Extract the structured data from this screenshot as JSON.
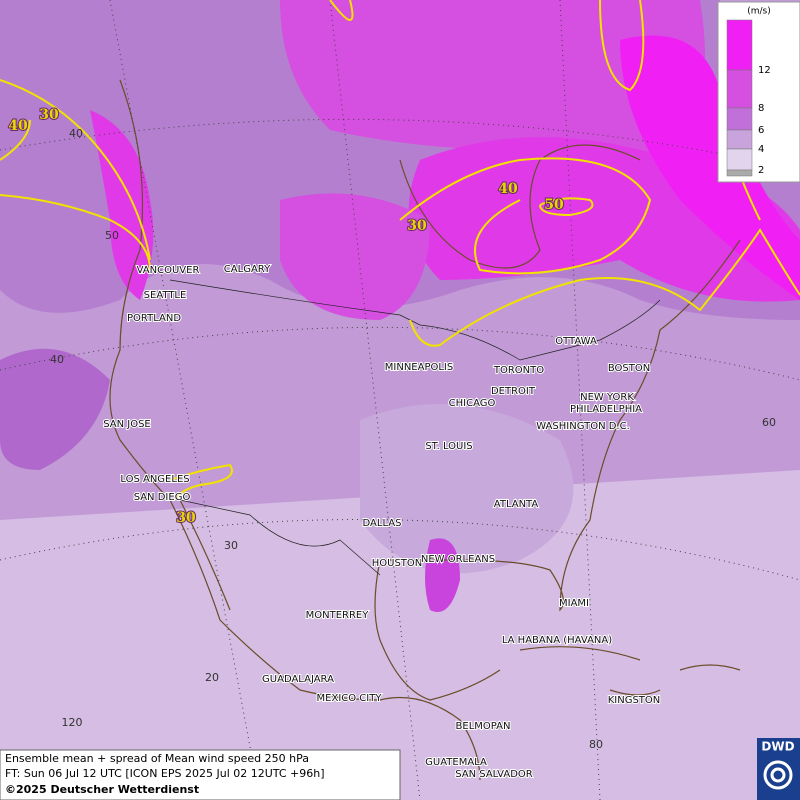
{
  "map": {
    "cities": [
      "VANCOUVER",
      "CALGARY",
      "SEATTLE",
      "PORTLAND",
      "MINNEAPOLIS",
      "TORONTO",
      "OTTAWA",
      "BOSTON",
      "DETROIT",
      "CHICAGO",
      "NEW YORK",
      "PHILADELPHIA",
      "WASHINGTON D.C.",
      "SAN JOSE",
      "ST. LOUIS",
      "LOS ANGELES",
      "SAN DIEGO",
      "ATLANTA",
      "DALLAS",
      "HOUSTON",
      "NEW ORLEANS",
      "MIAMI",
      "MONTERREY",
      "LA HABANA (HAVANA)",
      "GUADALAJARA",
      "MEXICO CITY",
      "KINGSTON",
      "BELMOPAN",
      "GUATEMALA",
      "SAN SALVADOR"
    ],
    "contour_labels": [
      "40",
      "30",
      "40",
      "50",
      "30",
      "30"
    ],
    "grid_labels": [
      "40",
      "50",
      "40",
      "30",
      "20",
      "120",
      "80",
      "60"
    ]
  },
  "legend": {
    "unit": "(m/s)",
    "levels": [
      "12",
      "8",
      "6",
      "4",
      "2"
    ]
  },
  "footer": {
    "line1": "Ensemble mean + spread of Mean wind speed 250 hPa",
    "line2": "FT: Sun 06 Jul 12 UTC [ICON EPS 2025 Jul 02 12UTC +96h]",
    "line3": "©2025 Deutscher Wetterdienst"
  },
  "logo": "DWD"
}
